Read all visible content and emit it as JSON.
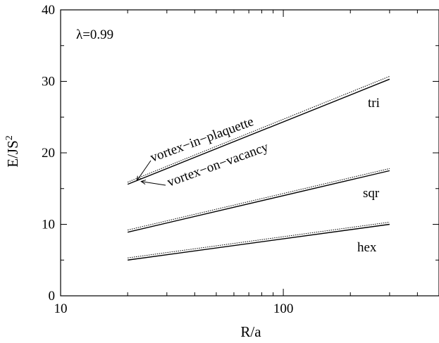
{
  "chart_data": {
    "type": "line",
    "x_scale": "log",
    "xlim": [
      10,
      500
    ],
    "ylim": [
      0,
      40
    ],
    "x_ticks": [
      10,
      100
    ],
    "x_tick_labels": [
      "10",
      "100"
    ],
    "y_ticks": [
      0,
      10,
      20,
      30,
      40
    ],
    "y_tick_labels": [
      "0",
      "10",
      "20",
      "30",
      "40"
    ],
    "xlabel": "R/a",
    "ylabel": "E/JS",
    "ylabel_sup": "2",
    "parameter_label": "λ=0.99",
    "line_styles": {
      "vortex-on-vacancy": "solid",
      "vortex-in-plaquette": "dotted"
    },
    "groups": [
      {
        "label": "tri",
        "x": [
          20,
          300
        ],
        "vortex_on_vacancy": [
          15.6,
          30.3
        ],
        "vortex_in_plaquette": [
          15.9,
          30.7
        ]
      },
      {
        "label": "sqr",
        "x": [
          20,
          300
        ],
        "vortex_on_vacancy": [
          8.9,
          17.5
        ],
        "vortex_in_plaquette": [
          9.2,
          17.8
        ]
      },
      {
        "label": "hex",
        "x": [
          20,
          300
        ],
        "vortex_on_vacancy": [
          5.0,
          10.0
        ],
        "vortex_in_plaquette": [
          5.3,
          10.3
        ]
      }
    ],
    "annotations": [
      {
        "text": "vortex−in−plaquette",
        "points_to": {
          "x": 22,
          "y": 16.1
        }
      },
      {
        "text": "vortex−on−vacancy",
        "points_to": {
          "x": 23,
          "y": 16.0
        }
      }
    ],
    "grid": false,
    "legend": "none"
  }
}
